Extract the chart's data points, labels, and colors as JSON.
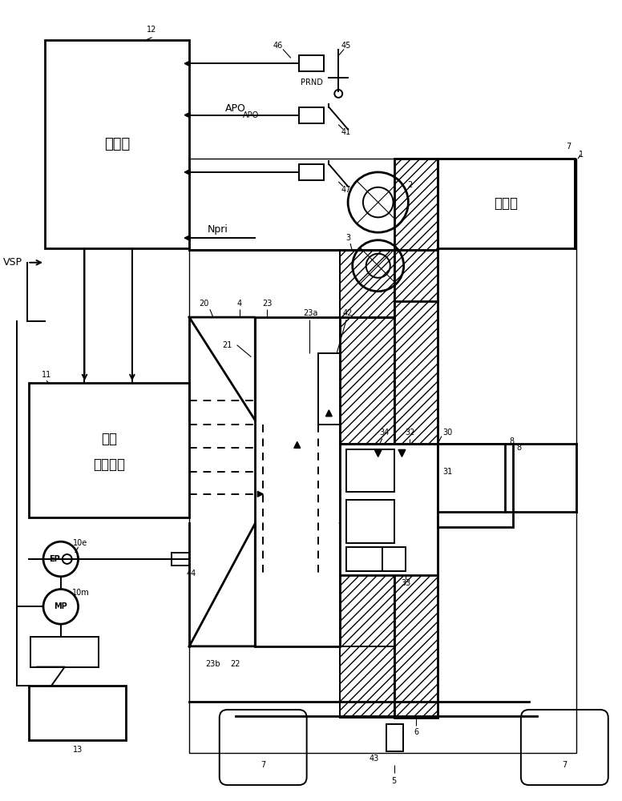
{
  "bg_color": "#ffffff",
  "lc": "#000000",
  "fs": 9,
  "fs_sm": 7,
  "lw": 1.4,
  "lw_thick": 2.0,
  "labels": {
    "controller": "控制器",
    "hydraulic1": "油压",
    "hydraulic2": "控制回路",
    "engine": "发动机"
  }
}
